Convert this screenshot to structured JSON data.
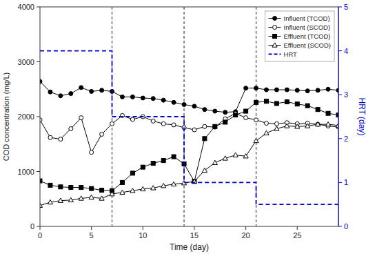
{
  "chart_data": {
    "type": "line",
    "x_label": "Time (day)",
    "y_label": "COD concentration (mg/L)",
    "y2_label": "HRT (day)",
    "x": [
      0,
      1,
      2,
      3,
      4,
      5,
      6,
      7,
      8,
      9,
      10,
      11,
      12,
      13,
      14,
      15,
      16,
      17,
      18,
      19,
      20,
      21,
      22,
      23,
      24,
      25,
      26,
      27,
      28,
      29
    ],
    "xlim": [
      0,
      29
    ],
    "xticks": [
      0,
      5,
      10,
      15,
      20,
      25
    ],
    "ylim": [
      0,
      4000
    ],
    "yticks": [
      0,
      1000,
      2000,
      3000,
      4000
    ],
    "y2lim": [
      0,
      5
    ],
    "y2ticks": [
      0,
      1,
      2,
      3,
      4,
      5
    ],
    "vlines": [
      7,
      14,
      21
    ],
    "grid": false,
    "legend": "upper right",
    "series": [
      {
        "name": "Influent (TCOD)",
        "color": "#000000",
        "marker": "circle",
        "line_style": "solid",
        "values": [
          2640,
          2450,
          2380,
          2420,
          2530,
          2460,
          2480,
          2460,
          2360,
          2360,
          2340,
          2330,
          2300,
          2260,
          2220,
          2190,
          2130,
          2100,
          2080,
          2090,
          2520,
          2520,
          2490,
          2490,
          2490,
          2480,
          2470,
          2480,
          2500,
          2480
        ]
      },
      {
        "name": "Influent (SCOD)",
        "color": "#000000",
        "marker": "open-circle",
        "line_style": "solid",
        "values": [
          1940,
          1620,
          1590,
          1780,
          1980,
          1350,
          1680,
          1870,
          2020,
          1950,
          2000,
          1920,
          1870,
          1850,
          1800,
          1760,
          1820,
          1810,
          1960,
          2060,
          1980,
          1940,
          1880,
          1870,
          1890,
          1870,
          1880,
          1860,
          1830,
          1810
        ]
      },
      {
        "name": "Effluent (TCOD)",
        "color": "#000000",
        "marker": "square",
        "line_style": "solid",
        "values": [
          830,
          750,
          720,
          710,
          710,
          690,
          660,
          650,
          800,
          970,
          1080,
          1150,
          1200,
          1270,
          1140,
          820,
          1600,
          1820,
          1900,
          2030,
          2100,
          2260,
          2280,
          2240,
          2270,
          2230,
          2200,
          2130,
          2060,
          2030
        ]
      },
      {
        "name": "Effluent (SCOD)",
        "color": "#000000",
        "marker": "open-triangle",
        "line_style": "solid",
        "values": [
          380,
          440,
          470,
          480,
          510,
          530,
          510,
          590,
          620,
          650,
          680,
          700,
          740,
          770,
          790,
          820,
          1020,
          1160,
          1240,
          1300,
          1280,
          1560,
          1700,
          1780,
          1830,
          1820,
          1830,
          1860,
          1860,
          1840
        ]
      },
      {
        "name": "HRT",
        "color": "#0000cc",
        "marker": "none",
        "line_style": "dashed",
        "axis": "y2",
        "x": [
          0,
          7,
          7,
          14,
          14,
          21,
          21,
          29
        ],
        "values": [
          4.0,
          4.0,
          2.5,
          2.5,
          1.0,
          1.0,
          0.5,
          0.5
        ]
      }
    ]
  }
}
